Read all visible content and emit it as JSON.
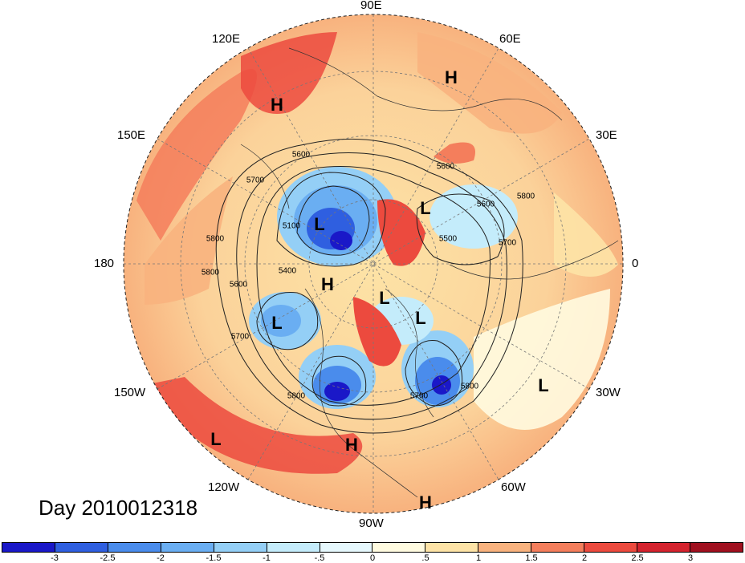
{
  "map": {
    "projection": "polar-stereographic-north",
    "longitude_labels": [
      "90E",
      "60E",
      "30E",
      "0",
      "30W",
      "60W",
      "90W",
      "120W",
      "150W",
      "180",
      "150E",
      "120E"
    ],
    "contour_labels": [
      "5600",
      "5700",
      "5800",
      "5100",
      "5400",
      "5600",
      "5700",
      "5800",
      "5700",
      "5800",
      "5800",
      "5600",
      "5700",
      "5600",
      "5800",
      "5500"
    ],
    "pressure_centers": [
      {
        "type": "H",
        "region": "siberia"
      },
      {
        "type": "H",
        "region": "russia-north"
      },
      {
        "type": "L",
        "region": "east-siberia"
      },
      {
        "type": "L",
        "region": "europe-north"
      },
      {
        "type": "H",
        "region": "alaska"
      },
      {
        "type": "L",
        "region": "north-pacific"
      },
      {
        "type": "L",
        "region": "hudson-bay"
      },
      {
        "type": "L",
        "region": "baffin"
      },
      {
        "type": "L",
        "region": "mid-atlantic"
      },
      {
        "type": "L",
        "region": "east-pacific"
      },
      {
        "type": "H",
        "region": "mexico"
      },
      {
        "type": "H",
        "region": "south-america"
      }
    ]
  },
  "title": "Day 2010012318",
  "colorbar": {
    "ticks": [
      "-3",
      "-2.5",
      "-2",
      "-1.5",
      "-1",
      "-.5",
      "0",
      ".5",
      "1",
      "1.5",
      "2",
      "2.5",
      "3"
    ],
    "colors": [
      "#1a18c8",
      "#2f5fe0",
      "#4a8cec",
      "#6aaef2",
      "#94cff6",
      "#c4ecfb",
      "#e6f8fd",
      "#fffbe0",
      "#fde3a6",
      "#f8b27e",
      "#f47e5c",
      "#ec4a3e",
      "#d4232e",
      "#a0101f"
    ]
  }
}
